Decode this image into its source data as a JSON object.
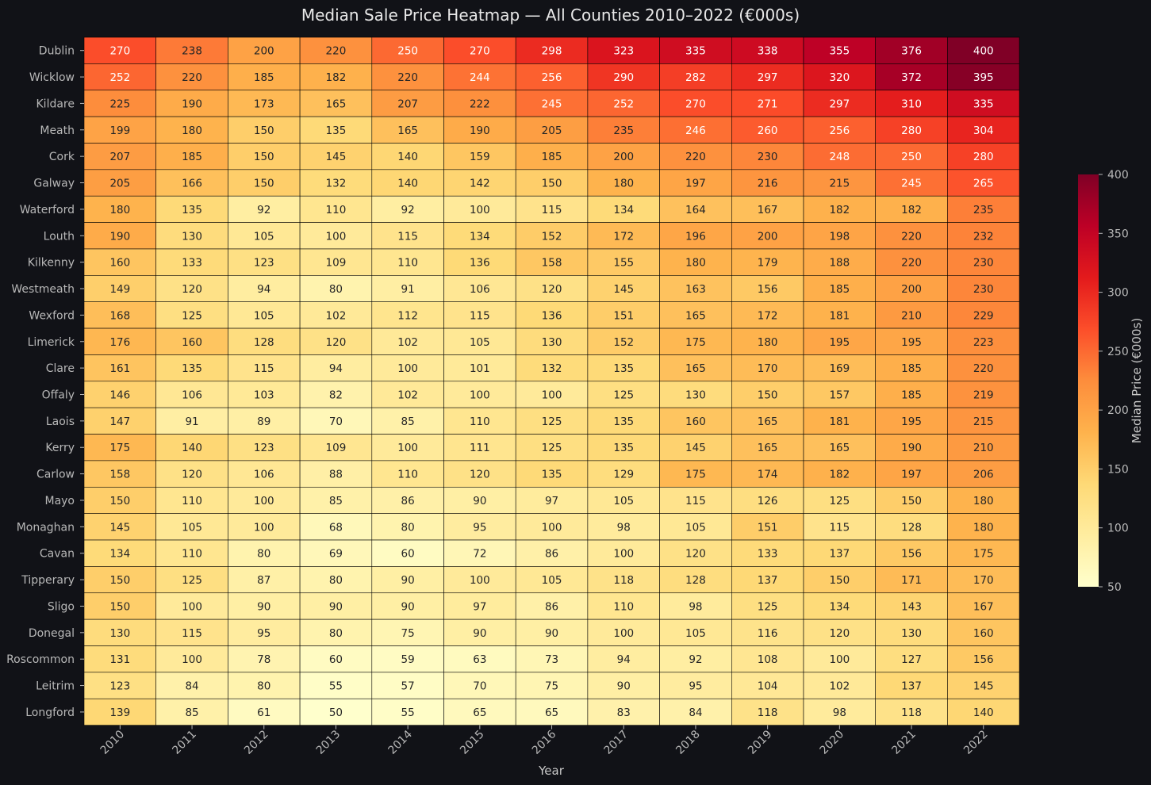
{
  "chart_data": {
    "type": "heatmap",
    "title": "Median Sale Price Heatmap — All Counties 2010–2022 (€000s)",
    "xlabel": "Year",
    "ylabel": "",
    "colorbar_label": "Median Price (€000s)",
    "colorbar_range": [
      50,
      400
    ],
    "colorbar_ticks": [
      "50",
      "100",
      "150",
      "200",
      "250",
      "300",
      "350",
      "400"
    ],
    "colormap": "YlOrRd",
    "years": [
      "2010",
      "2011",
      "2012",
      "2013",
      "2014",
      "2015",
      "2016",
      "2017",
      "2018",
      "2019",
      "2020",
      "2021",
      "2022"
    ],
    "counties": [
      "Dublin",
      "Wicklow",
      "Kildare",
      "Meath",
      "Cork",
      "Galway",
      "Waterford",
      "Louth",
      "Kilkenny",
      "Westmeath",
      "Wexford",
      "Limerick",
      "Clare",
      "Offaly",
      "Laois",
      "Kerry",
      "Carlow",
      "Mayo",
      "Monaghan",
      "Cavan",
      "Tipperary",
      "Sligo",
      "Donegal",
      "Roscommon",
      "Leitrim",
      "Longford"
    ],
    "values": [
      [
        270,
        238,
        200,
        220,
        250,
        270,
        298,
        323,
        335,
        338,
        355,
        376,
        400
      ],
      [
        252,
        220,
        185,
        182,
        220,
        244,
        256,
        290,
        282,
        297,
        320,
        372,
        395
      ],
      [
        225,
        190,
        173,
        165,
        207,
        222,
        245,
        252,
        270,
        271,
        297,
        310,
        335
      ],
      [
        199,
        180,
        150,
        135,
        165,
        190,
        205,
        235,
        246,
        260,
        256,
        280,
        304
      ],
      [
        207,
        185,
        150,
        145,
        140,
        159,
        185,
        200,
        220,
        230,
        248,
        250,
        280
      ],
      [
        205,
        166,
        150,
        132,
        140,
        142,
        150,
        180,
        197,
        216,
        215,
        245,
        265
      ],
      [
        180,
        135,
        92,
        110,
        92,
        100,
        115,
        134,
        164,
        167,
        182,
        182,
        235
      ],
      [
        190,
        130,
        105,
        100,
        115,
        134,
        152,
        172,
        196,
        200,
        198,
        220,
        232
      ],
      [
        160,
        133,
        123,
        109,
        110,
        136,
        158,
        155,
        180,
        179,
        188,
        220,
        230
      ],
      [
        149,
        120,
        94,
        80,
        91,
        106,
        120,
        145,
        163,
        156,
        185,
        200,
        230
      ],
      [
        168,
        125,
        105,
        102,
        112,
        115,
        136,
        151,
        165,
        172,
        181,
        210,
        229
      ],
      [
        176,
        160,
        128,
        120,
        102,
        105,
        130,
        152,
        175,
        180,
        195,
        195,
        223
      ],
      [
        161,
        135,
        115,
        94,
        100,
        101,
        132,
        135,
        165,
        170,
        169,
        185,
        220
      ],
      [
        146,
        106,
        103,
        82,
        102,
        100,
        100,
        125,
        130,
        150,
        157,
        185,
        219
      ],
      [
        147,
        91,
        89,
        70,
        85,
        110,
        125,
        135,
        160,
        165,
        181,
        195,
        215
      ],
      [
        175,
        140,
        123,
        109,
        100,
        111,
        125,
        135,
        145,
        165,
        165,
        190,
        210
      ],
      [
        158,
        120,
        106,
        88,
        110,
        120,
        135,
        129,
        175,
        174,
        182,
        197,
        206
      ],
      [
        150,
        110,
        100,
        85,
        86,
        90,
        97,
        105,
        115,
        126,
        125,
        150,
        180
      ],
      [
        145,
        105,
        100,
        68,
        80,
        95,
        100,
        98,
        105,
        151,
        115,
        128,
        180
      ],
      [
        134,
        110,
        80,
        69,
        60,
        72,
        86,
        100,
        120,
        133,
        137,
        156,
        175
      ],
      [
        150,
        125,
        87,
        80,
        90,
        100,
        105,
        118,
        128,
        137,
        150,
        171,
        170
      ],
      [
        150,
        100,
        90,
        90,
        90,
        97,
        86,
        110,
        98,
        125,
        134,
        143,
        167
      ],
      [
        130,
        115,
        95,
        80,
        75,
        90,
        90,
        100,
        105,
        116,
        120,
        130,
        160
      ],
      [
        131,
        100,
        78,
        60,
        59,
        63,
        73,
        94,
        92,
        108,
        100,
        127,
        156
      ],
      [
        123,
        84,
        80,
        55,
        57,
        70,
        75,
        90,
        95,
        104,
        102,
        137,
        145
      ],
      [
        139,
        85,
        61,
        50,
        55,
        65,
        65,
        83,
        84,
        118,
        98,
        118,
        140
      ]
    ]
  },
  "colors": {
    "background": "#111217",
    "text": "#e8e8e8",
    "tick_text": "#b8b8b8",
    "cell_border": "#000000",
    "scale": [
      "#ffffcc",
      "#ffeda0",
      "#fed976",
      "#feb24c",
      "#fd8d3c",
      "#fc4e2a",
      "#e31a1c",
      "#bd0026",
      "#800026"
    ]
  }
}
